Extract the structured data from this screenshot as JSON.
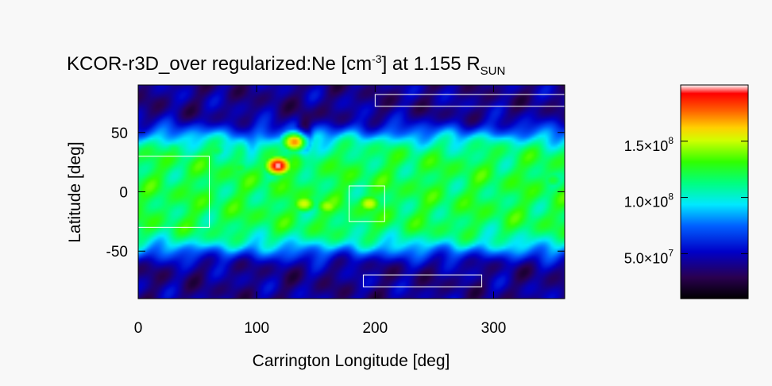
{
  "chart_data": {
    "type": "heatmap",
    "title": {
      "prefix": "KCOR-r3D_over regularized:Ne [cm",
      "unit_exponent": "-3",
      "middle": "] at 1.155 R",
      "subscript": "SUN"
    },
    "xlabel": "Carrington Longitude [deg]",
    "ylabel": "Latitude [deg]",
    "xlim": [
      0,
      360
    ],
    "ylim": [
      -90,
      90
    ],
    "x_ticks": [
      0,
      100,
      200,
      300
    ],
    "y_ticks": [
      50,
      0,
      -50
    ],
    "colorbar": {
      "range": [
        10000000.0,
        200000000.0
      ],
      "colormap": "rainbow",
      "ticks": [
        {
          "value": 150000000,
          "mantissa": "1.5",
          "exponent": "8"
        },
        {
          "value": 100000000,
          "mantissa": "1.0",
          "exponent": "8"
        },
        {
          "value": 50000000,
          "mantissa": "5.0",
          "exponent": "7"
        }
      ]
    },
    "features": [
      {
        "name": "hotspot",
        "lon": 118,
        "lat": 22,
        "level": 1.0
      },
      {
        "name": "hotspot",
        "lon": 132,
        "lat": 42,
        "level": 0.85
      },
      {
        "name": "hotspot",
        "lon": 140,
        "lat": -10,
        "level": 0.75
      },
      {
        "name": "hotspot",
        "lon": 160,
        "lat": -12,
        "level": 0.72
      },
      {
        "name": "hotspot",
        "lon": 195,
        "lat": -10,
        "level": 0.75
      },
      {
        "name": "hotspot",
        "lon": 115,
        "lat": 5,
        "level": 0.62
      },
      {
        "name": "hotspot",
        "lon": 85,
        "lat": 20,
        "level": 0.6
      },
      {
        "name": "hotspot",
        "lon": 65,
        "lat": 35,
        "level": 0.58
      },
      {
        "name": "hotspot",
        "lon": 350,
        "lat": 10,
        "level": 0.6
      },
      {
        "name": "hotspot",
        "lon": 30,
        "lat": 35,
        "level": 0.58
      }
    ],
    "regions": [
      {
        "lon": [
          0,
          60
        ],
        "lat": [
          -30,
          30
        ]
      },
      {
        "lon": [
          178,
          208
        ],
        "lat": [
          -25,
          5
        ]
      },
      {
        "lon": [
          200,
          360
        ],
        "lat": [
          72,
          82
        ]
      },
      {
        "lon": [
          190,
          290
        ],
        "lat": [
          -80,
          -70
        ]
      }
    ],
    "colors": {
      "background": "#f8f8f8",
      "region_outline": "#ffffff",
      "low": "#000000",
      "mid": "#00ff00",
      "high": "#ff0000"
    }
  }
}
